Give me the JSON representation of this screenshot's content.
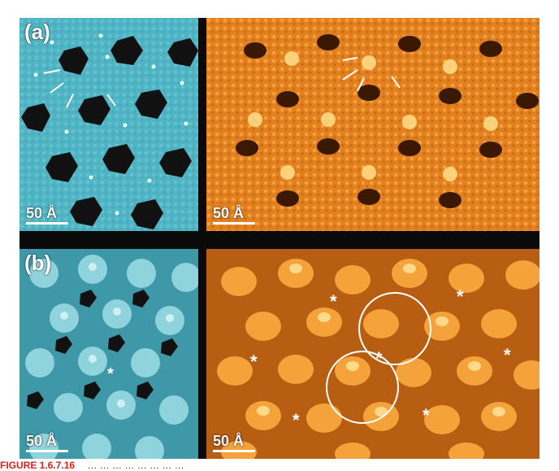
{
  "panels": {
    "a": {
      "label": "(a)",
      "scale_left": "50 Å",
      "scale_right": "50 Å"
    },
    "b": {
      "label": "(b)",
      "scale_left": "50 Å",
      "scale_right": "50 Å"
    }
  },
  "caption": {
    "label": "FIGURE 1.6.7.16",
    "text": "… … … … … … … …"
  },
  "colors": {
    "cyan_base": "#4fb5c4",
    "cyan_light": "#a9e0e6",
    "orange_base": "#e2801f",
    "orange_light": "#ffd067",
    "pore": "#111111",
    "caption_red": "#d7231f"
  }
}
